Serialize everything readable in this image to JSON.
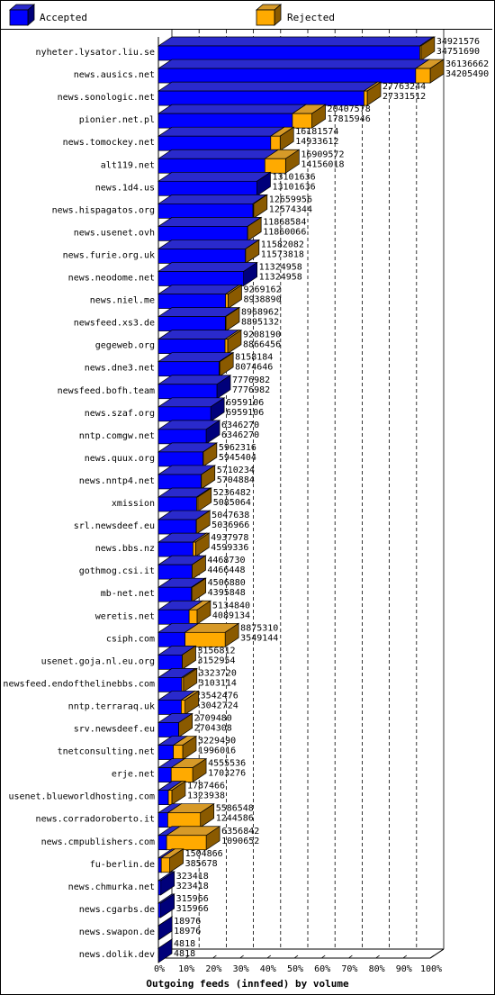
{
  "legend": {
    "accepted_label": "Accepted",
    "rejected_label": "Rejected"
  },
  "colors": {
    "accepted_front": "#0000ff",
    "accepted_top": "#2a2acc",
    "accepted_side": "#00007a",
    "rejected_front": "#ffaa00",
    "rejected_top": "#d79a28",
    "rejected_side": "#8a5a00",
    "grid": "#000000",
    "background": "#ffffff"
  },
  "chart_data": {
    "type": "bar",
    "orientation": "horizontal",
    "stacked_3d": true,
    "title": "Outgoing feeds (innfeed) by volume",
    "xlabel": "Outgoing feeds (innfeed) by volume",
    "ylabel": "",
    "x_scale": "percent",
    "xlim": [
      0,
      100
    ],
    "x_ticks": [
      "0%",
      "10%",
      "20%",
      "30%",
      "40%",
      "50%",
      "60%",
      "70%",
      "80%",
      "90%",
      "100%"
    ],
    "grid": "vertical dashed",
    "legend_position": "top",
    "categories": [
      "nyheter.lysator.liu.se",
      "news.ausics.net",
      "news.sonologic.net",
      "pionier.net.pl",
      "news.tomockey.net",
      "alt119.net",
      "news.1d4.us",
      "news.hispagatos.org",
      "news.usenet.ovh",
      "news.furie.org.uk",
      "news.neodome.net",
      "news.niel.me",
      "newsfeed.xs3.de",
      "gegeweb.org",
      "news.dne3.net",
      "newsfeed.bofh.team",
      "news.szaf.org",
      "nntp.comgw.net",
      "news.quux.org",
      "news.nntp4.net",
      "xmission",
      "srl.newsdeef.eu",
      "news.bbs.nz",
      "gothmog.csi.it",
      "mb-net.net",
      "weretis.net",
      "csiph.com",
      "usenet.goja.nl.eu.org",
      "newsfeed.endofthelinebbs.com",
      "nntp.terraraq.uk",
      "srv.newsdeef.eu",
      "tnetconsulting.net",
      "erje.net",
      "usenet.blueworldhosting.com",
      "news.corradoroberto.it",
      "news.cmpublishers.com",
      "fu-berlin.de",
      "news.chmurka.net",
      "news.cgarbs.de",
      "news.swapon.de",
      "news.dolik.dev"
    ],
    "series": [
      {
        "name": "Accepted",
        "values": [
          34751690,
          34205490,
          27331512,
          17815946,
          14933612,
          14156018,
          13101636,
          12574344,
          11860066,
          11573818,
          11324958,
          8938890,
          8895132,
          8866456,
          8074646,
          7776982,
          6959106,
          6346270,
          5945404,
          5704884,
          5085064,
          5036966,
          4599336,
          4466448,
          4395848,
          4089134,
          3549144,
          3152954,
          3103114,
          3042724,
          2704308,
          1996016,
          1703276,
          1323938,
          1244586,
          1090652,
          385678,
          323418,
          315966,
          18976,
          4818
        ]
      },
      {
        "name": "Rejected",
        "values": [
          34921576,
          36136662,
          27763244,
          20407578,
          16181574,
          16909572,
          13101636,
          12659956,
          11868584,
          11582082,
          11324958,
          9269162,
          8968962,
          9208190,
          8158184,
          7776982,
          6959106,
          6346270,
          5962316,
          5710234,
          5236482,
          5047638,
          4937978,
          4468730,
          4506880,
          5134840,
          8875310,
          3156812,
          3323720,
          3542476,
          2709480,
          3229490,
          4555536,
          1787466,
          5586548,
          6356842,
          1504866,
          323418,
          315966,
          18976,
          4818
        ]
      }
    ]
  }
}
